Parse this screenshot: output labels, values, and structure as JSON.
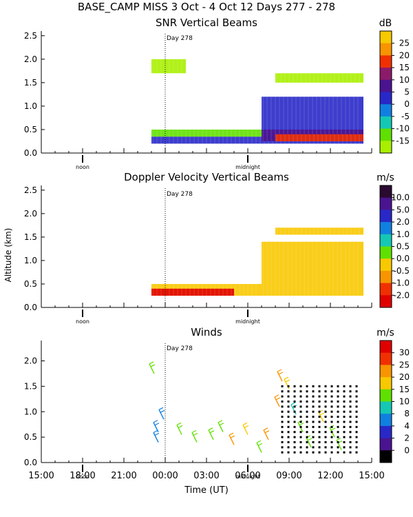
{
  "header": {
    "title": "BASE_CAMP MISS    3 Oct -  4 Oct 12 Days 277 - 278"
  },
  "chart_data": [
    {
      "type": "heatmap",
      "title": "SNR Vertical Beams",
      "units": "dB",
      "ylabel": "",
      "ylim": [
        0.0,
        2.6
      ],
      "y_ticks": [
        "0.0",
        "0.5",
        "1.0",
        "1.5",
        "2.0",
        "2.5"
      ],
      "time_markers": [
        "noon",
        "midnight"
      ],
      "annotation": "Day 278",
      "colorbar": {
        "labels": [
          "25",
          "20",
          "15",
          "10",
          "5",
          "0",
          "-5",
          "-10",
          "-15"
        ],
        "colors": [
          "#f8c800",
          "#f89400",
          "#f03000",
          "#8c1a6a",
          "#4a1490",
          "#2828c8",
          "#1080e0",
          "#14c8b4",
          "#60e000",
          "#a8f000"
        ]
      },
      "layers": [
        {
          "name": "surface noise band",
          "t_start": 23.0,
          "t_end": 38.4,
          "alt_lo": 0.2,
          "alt_hi": 0.35,
          "color": "#2828c8"
        },
        {
          "name": "lower boundary layer",
          "t_start": 23.0,
          "t_end": 31.0,
          "alt_lo": 0.35,
          "alt_hi": 0.5,
          "color": "#60e000"
        },
        {
          "name": "deep mixed layer",
          "t_start": 31.0,
          "t_end": 38.4,
          "alt_lo": 0.3,
          "alt_hi": 1.2,
          "color": "#2828c8"
        },
        {
          "name": "strong echo core",
          "t_start": 31.0,
          "t_end": 38.4,
          "alt_lo": 0.25,
          "alt_hi": 0.5,
          "color": "#4a1490"
        },
        {
          "name": "surface high snr",
          "t_start": 32.0,
          "t_end": 38.4,
          "alt_lo": 0.25,
          "alt_hi": 0.4,
          "color": "#f03000"
        },
        {
          "name": "inversion layer",
          "t_start": 32.0,
          "t_end": 38.4,
          "alt_lo": 1.5,
          "alt_hi": 1.7,
          "color": "#a8f000"
        },
        {
          "name": "upper echoes",
          "t_start": 23.0,
          "t_end": 25.5,
          "alt_lo": 1.7,
          "alt_hi": 2.0,
          "color": "#a8f000"
        }
      ]
    },
    {
      "type": "heatmap",
      "title": "Doppler Velocity Vertical Beams",
      "units": "m/s",
      "ylabel": "Altitude (km)",
      "ylim": [
        0.0,
        2.6
      ],
      "y_ticks": [
        "0.0",
        "0.5",
        "1.0",
        "1.5",
        "2.0",
        "2.5"
      ],
      "time_markers": [
        "noon",
        "midnight"
      ],
      "annotation": "Day 278",
      "colorbar": {
        "labels": [
          "10.0",
          "5.0",
          "2.0",
          "1.0",
          "0.5",
          "0.0",
          "-0.5",
          "-1.0",
          "-2.0"
        ],
        "colors": [
          "#2a0a30",
          "#4a1490",
          "#2828c8",
          "#1080e0",
          "#14c8b4",
          "#60e000",
          "#f8c800",
          "#f89400",
          "#f03000",
          "#e00000"
        ]
      },
      "layers": [
        {
          "name": "lower velocity field",
          "t_start": 23.0,
          "t_end": 31.0,
          "alt_lo": 0.25,
          "alt_hi": 0.5,
          "color": "#f8c800"
        },
        {
          "name": "mixed layer velocities",
          "t_start": 31.0,
          "t_end": 38.4,
          "alt_lo": 0.25,
          "alt_hi": 1.4,
          "color": "#f8c800"
        },
        {
          "name": "upper layer velocities",
          "t_start": 32.0,
          "t_end": 38.4,
          "alt_lo": 1.55,
          "alt_hi": 1.7,
          "color": "#f8c800"
        },
        {
          "name": "downdraft patches",
          "t_start": 23.0,
          "t_end": 29.0,
          "alt_lo": 0.25,
          "alt_hi": 0.4,
          "color": "#e00000"
        }
      ]
    },
    {
      "type": "scatter",
      "title": "Winds",
      "units": "m/s",
      "xlabel": "Time (UT)",
      "ylabel": "",
      "xlim": [
        15,
        39
      ],
      "ylim": [
        0.0,
        2.4
      ],
      "x_ticks": [
        "15:00",
        "18:00",
        "21:00",
        "00:00",
        "03:00",
        "06:00",
        "09:00",
        "12:00",
        "15:00"
      ],
      "y_ticks": [
        "0.0",
        "0.5",
        "1.0",
        "1.5",
        "2.0"
      ],
      "time_markers": [
        "noon",
        "midnight"
      ],
      "annotation": "Day 278",
      "colorbar": {
        "labels": [
          "30",
          "25",
          "20",
          "15",
          "10",
          "8",
          "4",
          "2",
          "0"
        ],
        "colors": [
          "#e00000",
          "#f03000",
          "#f89400",
          "#f8c800",
          "#60e000",
          "#14c8b4",
          "#1080e0",
          "#2828c8",
          "#4a1490",
          "#000000"
        ]
      },
      "wind_barbs": [
        {
          "t": 23.2,
          "alt": 1.75,
          "speed": 12
        },
        {
          "t": 23.9,
          "alt": 0.85,
          "speed": 5
        },
        {
          "t": 23.5,
          "alt": 0.6,
          "speed": 5
        },
        {
          "t": 23.5,
          "alt": 0.4,
          "speed": 5
        },
        {
          "t": 25.2,
          "alt": 0.55,
          "speed": 12
        },
        {
          "t": 26.3,
          "alt": 0.4,
          "speed": 12
        },
        {
          "t": 27.5,
          "alt": 0.45,
          "speed": 12
        },
        {
          "t": 28.2,
          "alt": 0.6,
          "speed": 10
        },
        {
          "t": 29.0,
          "alt": 0.35,
          "speed": 20
        },
        {
          "t": 30.0,
          "alt": 0.55,
          "speed": 15
        },
        {
          "t": 31.0,
          "alt": 0.2,
          "speed": 10
        },
        {
          "t": 31.5,
          "alt": 0.45,
          "speed": 22
        },
        {
          "t": 32.3,
          "alt": 1.1,
          "speed": 20
        },
        {
          "t": 32.5,
          "alt": 1.6,
          "speed": 22
        },
        {
          "t": 33.0,
          "alt": 1.45,
          "speed": 15
        },
        {
          "t": 33.5,
          "alt": 0.95,
          "speed": 8
        },
        {
          "t": 34.0,
          "alt": 0.6,
          "speed": 10
        },
        {
          "t": 34.6,
          "alt": 0.3,
          "speed": 12
        },
        {
          "t": 35.5,
          "alt": 0.8,
          "speed": 15
        },
        {
          "t": 36.3,
          "alt": 0.5,
          "speed": 10
        },
        {
          "t": 36.8,
          "alt": 0.25,
          "speed": 12
        }
      ]
    }
  ]
}
